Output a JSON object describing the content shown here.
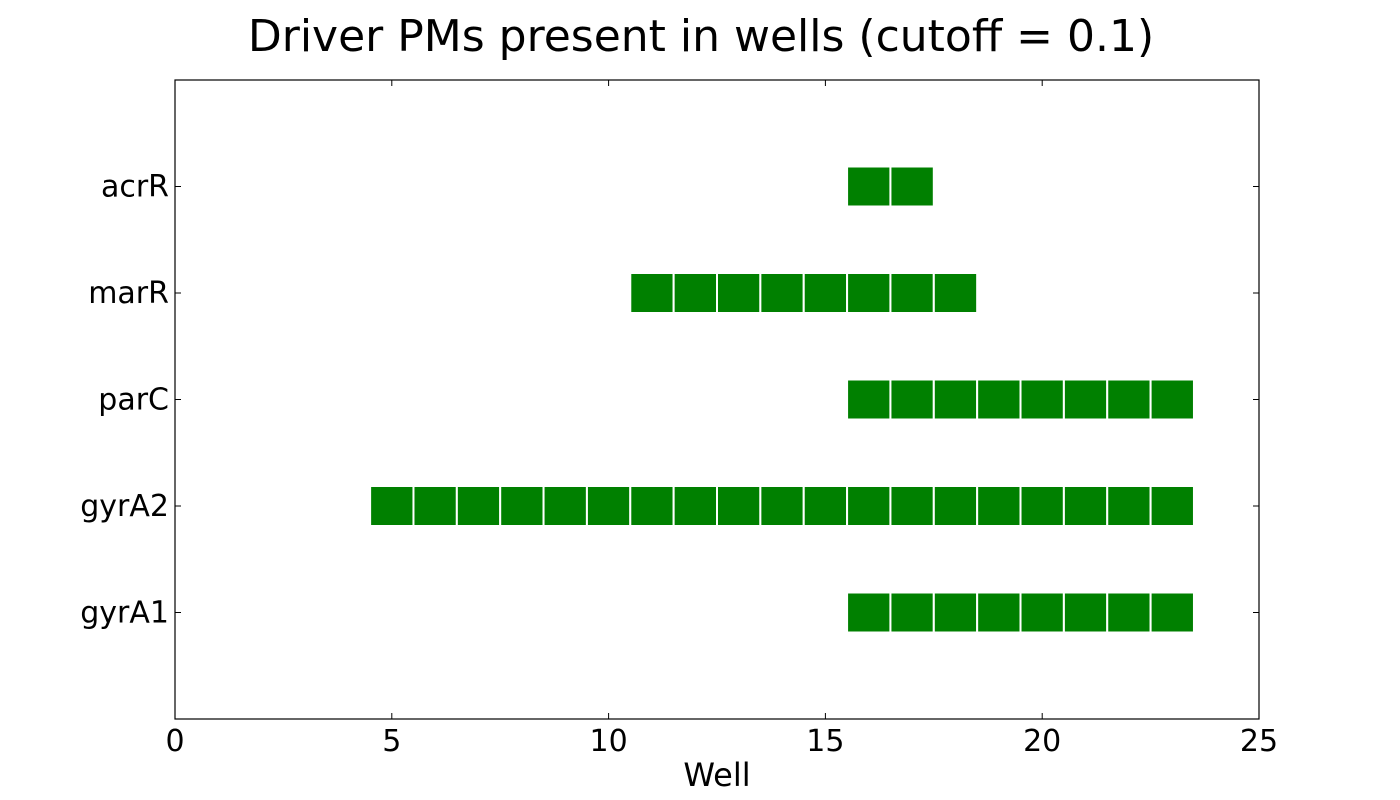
{
  "chart_data": {
    "type": "heatmap",
    "title": "Driver PMs present in wells (cutoff = 0.1)",
    "xlabel": "Well",
    "ylabel": "",
    "xlim": [
      0,
      25
    ],
    "x_ticks": [
      0,
      5,
      10,
      15,
      20,
      25
    ],
    "categories": [
      "gyrA1",
      "gyrA2",
      "parC",
      "marR",
      "acrR"
    ],
    "grid": false,
    "legend": "none",
    "marker_color": "#008000",
    "series": [
      {
        "name": "gyrA1",
        "present_wells": [
          16,
          17,
          18,
          19,
          20,
          21,
          22,
          23
        ]
      },
      {
        "name": "gyrA2",
        "present_wells": [
          5,
          6,
          7,
          8,
          9,
          10,
          11,
          12,
          13,
          14,
          15,
          16,
          17,
          18,
          19,
          20,
          21,
          22,
          23
        ]
      },
      {
        "name": "parC",
        "present_wells": [
          16,
          17,
          18,
          19,
          20,
          21,
          22,
          23
        ]
      },
      {
        "name": "marR",
        "present_wells": [
          11,
          12,
          13,
          14,
          15,
          16,
          17,
          18
        ]
      },
      {
        "name": "acrR",
        "present_wells": [
          16,
          17
        ]
      }
    ]
  }
}
